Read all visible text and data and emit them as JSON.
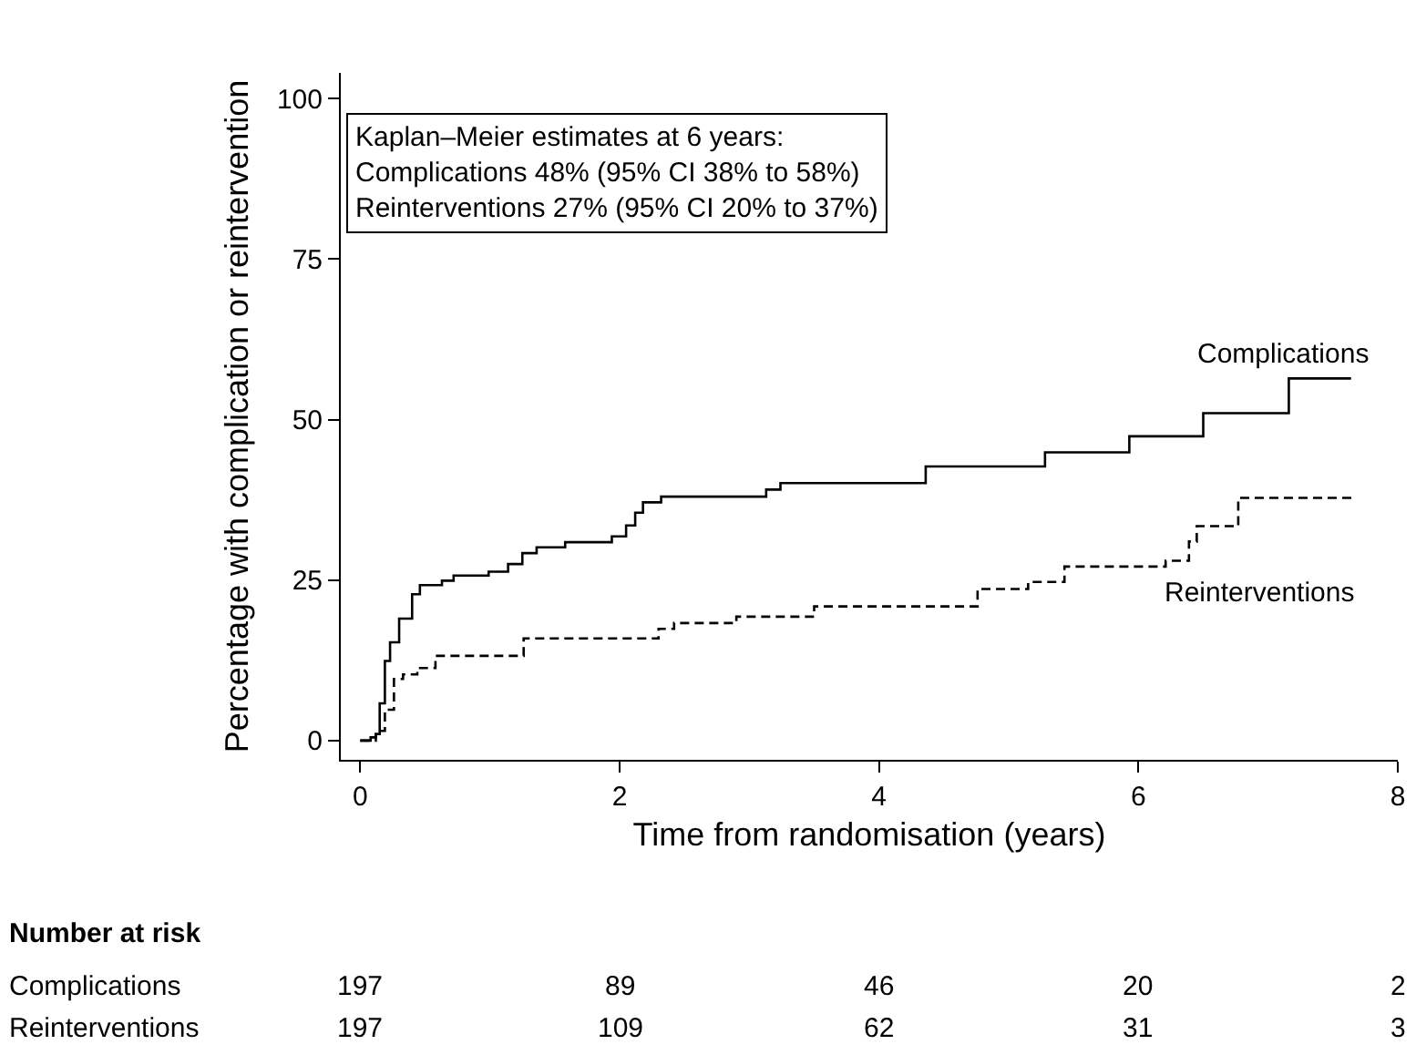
{
  "chart_data": {
    "type": "step",
    "xlabel": "Time from randomisation (years)",
    "ylabel": "Percentage with complication or reintervention",
    "xlim": [
      -0.15,
      8
    ],
    "ylim": [
      -3,
      104
    ],
    "xticks": [
      0,
      2,
      4,
      6,
      8
    ],
    "yticks": [
      0,
      25,
      50,
      75,
      100
    ],
    "series": [
      {
        "name": "Complications",
        "color": "#000000",
        "line_style": "solid",
        "x": [
          0,
          0.08,
          0.12,
          0.15,
          0.19,
          0.23,
          0.3,
          0.4,
          0.46,
          0.63,
          0.72,
          0.99,
          1.14,
          1.25,
          1.36,
          1.58,
          1.94,
          2.05,
          2.12,
          2.18,
          2.32,
          3.13,
          3.24,
          4.36,
          5.28,
          5.93,
          6.5,
          7.16,
          7.64
        ],
        "values": [
          0,
          0.5,
          1,
          5.8,
          12.4,
          15.3,
          19,
          22.8,
          24.2,
          24.9,
          25.7,
          26.3,
          27.5,
          29.2,
          30.1,
          30.9,
          31.8,
          33.5,
          35.5,
          37.1,
          38,
          39.1,
          40.1,
          42.7,
          44.9,
          47.4,
          51,
          56.4,
          56.4
        ]
      },
      {
        "name": "Reinterventions",
        "color": "#000000",
        "line_style": "dashed",
        "x": [
          0,
          0.12,
          0.15,
          0.19,
          0.26,
          0.33,
          0.44,
          0.58,
          1.26,
          2.3,
          2.42,
          2.9,
          3.5,
          4.76,
          5.15,
          5.43,
          6.21,
          6.39,
          6.45,
          6.77,
          7.66
        ],
        "values": [
          0,
          1,
          1.5,
          4.8,
          9.6,
          10.3,
          11.3,
          13.2,
          15.9,
          17.4,
          18.3,
          19.3,
          20.9,
          23.6,
          24.7,
          27.1,
          28,
          31,
          33.4,
          37.8,
          37.8
        ]
      }
    ],
    "annotations": [
      "Kaplan–Meier estimates at 6 years:\nComplications 48% (95% CI 38% to 58%)\nReinterventions 27% (95% CI 20% to 37%)",
      "Number at risk",
      "Complications",
      "Reinterventions",
      "197",
      "89",
      "46",
      "20",
      "2",
      "197",
      "109",
      "62",
      "31",
      "3"
    ]
  }
}
